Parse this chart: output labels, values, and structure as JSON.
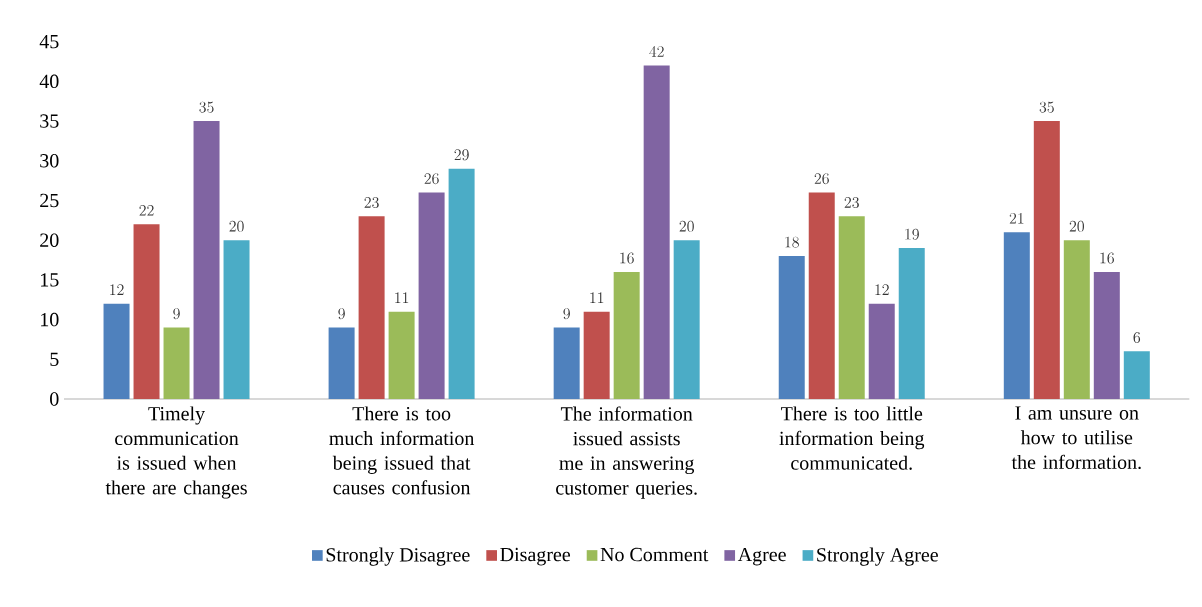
{
  "chart_data": {
    "type": "bar",
    "categories": [
      "Timely communication is issued when there are changes",
      "There is too much information being issued that causes confusion",
      "The information issued assists me in answering customer queries.",
      "There is too little information being communicated.",
      "I am unsure on how to utilise the information."
    ],
    "series": [
      {
        "name": "Strongly Disagree",
        "color": "#4f81bd",
        "values": [
          12,
          9,
          9,
          18,
          21
        ]
      },
      {
        "name": "Disagree",
        "color": "#c0504d",
        "values": [
          22,
          23,
          11,
          26,
          35
        ]
      },
      {
        "name": "No Comment",
        "color": "#9bbb59",
        "values": [
          9,
          11,
          16,
          23,
          20
        ]
      },
      {
        "name": "Agree",
        "color": "#8064a2",
        "values": [
          35,
          26,
          42,
          12,
          16
        ]
      },
      {
        "name": "Strongly Agree",
        "color": "#4bacc6",
        "values": [
          20,
          29,
          20,
          19,
          6
        ]
      }
    ],
    "ylim": [
      0,
      45
    ],
    "yticks": [
      0,
      5,
      10,
      15,
      20,
      25,
      30,
      35,
      40,
      45
    ],
    "grid": false,
    "legend": "bottom",
    "data_labels": true
  }
}
